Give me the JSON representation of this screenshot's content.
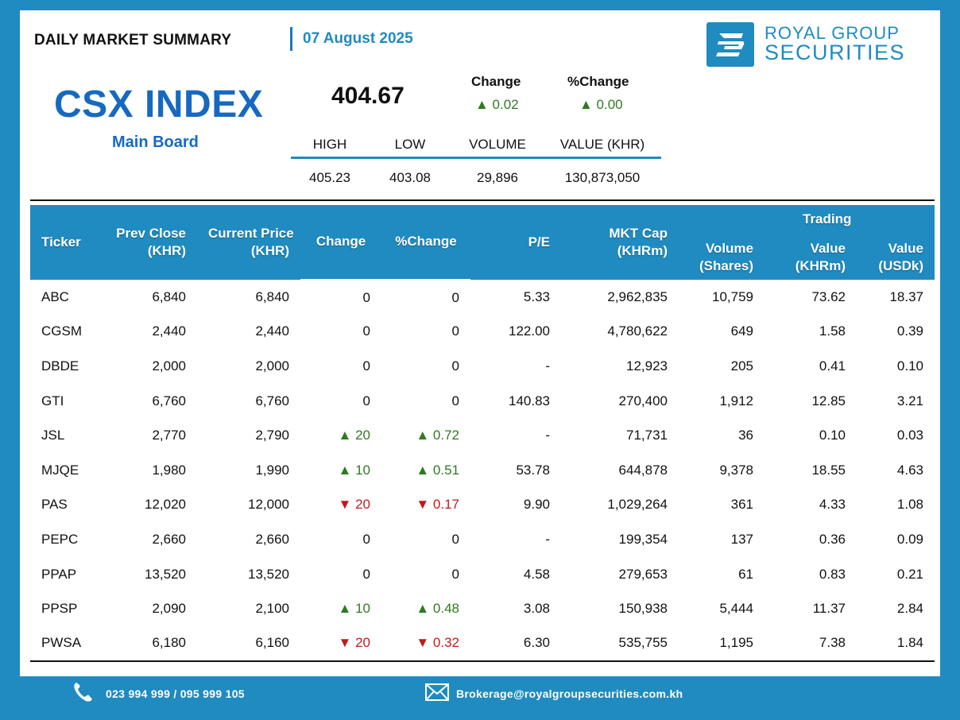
{
  "header": {
    "title": "DAILY MARKET SUMMARY",
    "date": "07 August 2025",
    "logo_line1": "ROYAL GROUP",
    "logo_line2": "SECURITIES"
  },
  "index": {
    "name": "CSX INDEX",
    "board": "Main Board",
    "value": "404.67",
    "change_label": "Change",
    "pct_change_label": "%Change",
    "change": "▲ 0.02",
    "pct_change": "▲ 0.00",
    "stats_headers": [
      "HIGH",
      "LOW",
      "VOLUME",
      "VALUE (KHR)"
    ],
    "stats_values": [
      "405.23",
      "403.08",
      "29,896",
      "130,873,050"
    ]
  },
  "table": {
    "headers": {
      "ticker": "Ticker",
      "prev_close": "Prev Close",
      "prev_close_unit": "(KHR)",
      "current_price": "Current Price",
      "current_price_unit": "(KHR)",
      "change": "Change",
      "pct_change": "%Change",
      "pe": "P/E",
      "mkt_cap": "MKT Cap",
      "mkt_cap_unit": "(KHRm)",
      "volume": "Volume",
      "volume_unit": "(Shares)",
      "trading": "Trading",
      "value_khr": "Value",
      "value_khr_unit": "(KHRm)",
      "value_usd": "Value",
      "value_usd_unit": "(USDk)"
    },
    "rows": [
      {
        "ticker": "ABC",
        "prev": "6,840",
        "cur": "6,840",
        "chg": "0",
        "pct": "0",
        "dir": "flat",
        "pe": "5.33",
        "mcap": "2,962,835",
        "vol": "10,759",
        "vkhr": "73.62",
        "vusd": "18.37"
      },
      {
        "ticker": "CGSM",
        "prev": "2,440",
        "cur": "2,440",
        "chg": "0",
        "pct": "0",
        "dir": "flat",
        "pe": "122.00",
        "mcap": "4,780,622",
        "vol": "649",
        "vkhr": "1.58",
        "vusd": "0.39"
      },
      {
        "ticker": "DBDE",
        "prev": "2,000",
        "cur": "2,000",
        "chg": "0",
        "pct": "0",
        "dir": "flat",
        "pe": "-",
        "mcap": "12,923",
        "vol": "205",
        "vkhr": "0.41",
        "vusd": "0.10"
      },
      {
        "ticker": "GTI",
        "prev": "6,760",
        "cur": "6,760",
        "chg": "0",
        "pct": "0",
        "dir": "flat",
        "pe": "140.83",
        "mcap": "270,400",
        "vol": "1,912",
        "vkhr": "12.85",
        "vusd": "3.21"
      },
      {
        "ticker": "JSL",
        "prev": "2,770",
        "cur": "2,790",
        "chg": "▲ 20",
        "pct": "▲ 0.72",
        "dir": "up",
        "pe": "-",
        "mcap": "71,731",
        "vol": "36",
        "vkhr": "0.10",
        "vusd": "0.03"
      },
      {
        "ticker": "MJQE",
        "prev": "1,980",
        "cur": "1,990",
        "chg": "▲ 10",
        "pct": "▲ 0.51",
        "dir": "up",
        "pe": "53.78",
        "mcap": "644,878",
        "vol": "9,378",
        "vkhr": "18.55",
        "vusd": "4.63"
      },
      {
        "ticker": "PAS",
        "prev": "12,020",
        "cur": "12,000",
        "chg": "▼ 20",
        "pct": "▼ 0.17",
        "dir": "down",
        "pe": "9.90",
        "mcap": "1,029,264",
        "vol": "361",
        "vkhr": "4.33",
        "vusd": "1.08"
      },
      {
        "ticker": "PEPC",
        "prev": "2,660",
        "cur": "2,660",
        "chg": "0",
        "pct": "0",
        "dir": "flat",
        "pe": "-",
        "mcap": "199,354",
        "vol": "137",
        "vkhr": "0.36",
        "vusd": "0.09"
      },
      {
        "ticker": "PPAP",
        "prev": "13,520",
        "cur": "13,520",
        "chg": "0",
        "pct": "0",
        "dir": "flat",
        "pe": "4.58",
        "mcap": "279,653",
        "vol": "61",
        "vkhr": "0.83",
        "vusd": "0.21"
      },
      {
        "ticker": "PPSP",
        "prev": "2,090",
        "cur": "2,100",
        "chg": "▲ 10",
        "pct": "▲ 0.48",
        "dir": "up",
        "pe": "3.08",
        "mcap": "150,938",
        "vol": "5,444",
        "vkhr": "11.37",
        "vusd": "2.84"
      },
      {
        "ticker": "PWSA",
        "prev": "6,180",
        "cur": "6,160",
        "chg": "▼ 20",
        "pct": "▼ 0.32",
        "dir": "down",
        "pe": "6.30",
        "mcap": "535,755",
        "vol": "1,195",
        "vkhr": "7.38",
        "vusd": "1.84"
      }
    ]
  },
  "footer": {
    "phone": "023 994 999 / 095 999 105",
    "email": "Brokerage@royalgroupsecurities.com.kh",
    "phone_icon": "phone-icon",
    "email_icon": "envelope-icon"
  },
  "colors": {
    "brand_blue": "#1f8bc0",
    "title_blue": "#1769bf",
    "up_green": "#2f7a1f",
    "down_red": "#c21a1a"
  }
}
